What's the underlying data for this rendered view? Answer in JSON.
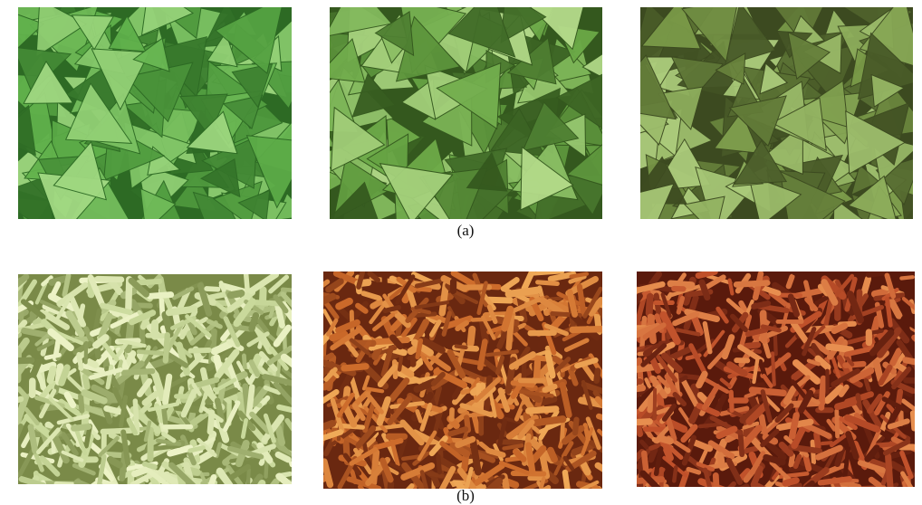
{
  "figure": {
    "row_a": {
      "caption": "(a)",
      "panels": [
        {
          "id": "chips-green-1",
          "base": "#5fb04a",
          "light": "#a6dc86",
          "dark": "#2d6a24",
          "shape": "triangle"
        },
        {
          "id": "chips-green-2",
          "base": "#6aa846",
          "light": "#b6dc8c",
          "dark": "#34581e",
          "shape": "triangle"
        },
        {
          "id": "chips-green-3",
          "base": "#7a9a48",
          "light": "#b0d080",
          "dark": "#3c4a20",
          "shape": "triangle"
        }
      ]
    },
    "row_b": {
      "caption": "(b)",
      "panels": [
        {
          "id": "puffs-pale-1",
          "base": "#c8d89a",
          "light": "#eef4c8",
          "dark": "#7a8a48",
          "shape": "stick"
        },
        {
          "id": "puffs-orange-2",
          "base": "#cc6a2a",
          "light": "#f0aa58",
          "dark": "#6a2810",
          "shape": "stick"
        },
        {
          "id": "puffs-orange-3",
          "base": "#c0502a",
          "light": "#e89050",
          "dark": "#5a1a0c",
          "shape": "stick"
        }
      ]
    }
  }
}
